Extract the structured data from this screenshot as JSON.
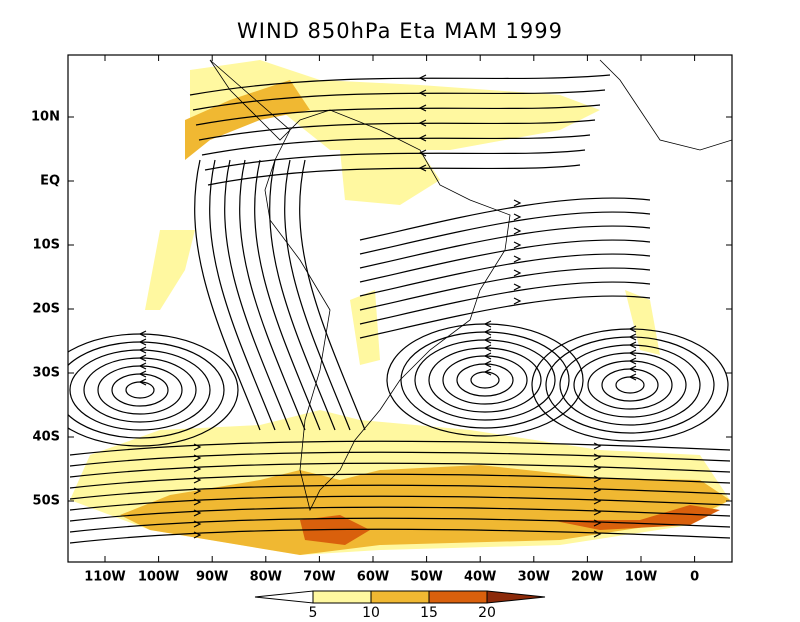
{
  "title": "WIND 850hPa Eta MAM 1999",
  "lat_labels": [
    "10N",
    "EQ",
    "10S",
    "20S",
    "30S",
    "40S",
    "50S"
  ],
  "lon_labels": [
    "110W",
    "100W",
    "90W",
    "80W",
    "70W",
    "60W",
    "50W",
    "40W",
    "30W",
    "20W",
    "10W",
    "0"
  ],
  "colorbar": {
    "labels": [
      "5",
      "10",
      "15",
      "20"
    ],
    "colors": [
      "#ffffff",
      "#fff8a0",
      "#f0b832",
      "#d9600c",
      "#8c2a0a"
    ]
  }
}
